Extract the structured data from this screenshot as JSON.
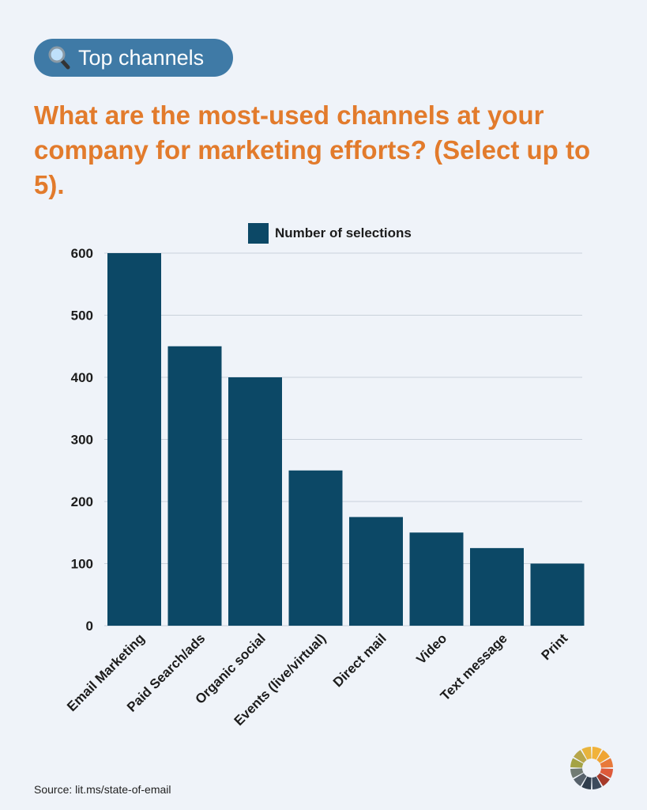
{
  "badge": {
    "label": "Top channels",
    "icon": "magnifying-glass-icon",
    "color": "#3f7aa6"
  },
  "question": "What are the most-used channels at your company for marketing efforts? (Select up to 5).",
  "source": "Source: lit.ms/state-of-email",
  "chart_data": {
    "type": "bar",
    "categories": [
      "Email Marketing",
      "Paid Search/ads",
      "Organic social",
      "Events (live/virtual)",
      "Direct mail",
      "Video",
      "Text message",
      "Print"
    ],
    "series": [
      {
        "name": "Number of selections",
        "values": [
          600,
          450,
          400,
          250,
          175,
          150,
          125,
          100
        ],
        "color": "#0c4866"
      }
    ],
    "ylim": [
      0,
      600
    ],
    "yticks": [
      0,
      100,
      200,
      300,
      400,
      500,
      600
    ],
    "grid": true,
    "legend": "top-center",
    "xlabel": "",
    "ylabel": ""
  }
}
